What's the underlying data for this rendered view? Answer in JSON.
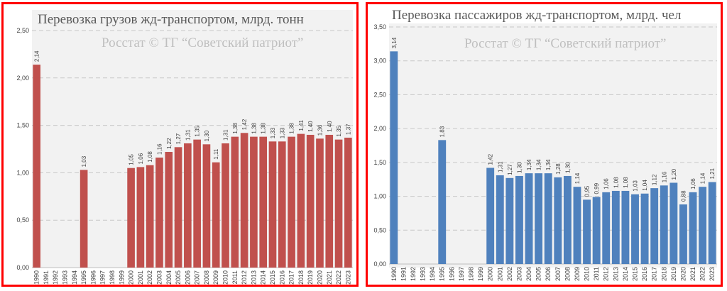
{
  "colors": {
    "frame": "#ff0000",
    "left_bars": "#c0504d",
    "right_bars": "#4f81bd",
    "plot_bg": "#f2f2f2"
  },
  "chart_data": [
    {
      "type": "bar",
      "title": "Перевозка грузов жд-транспортом, млрд. тонн",
      "watermark": "Росстат © ТГ “Советский патриот”",
      "categories": [
        "1990",
        "1991",
        "1992",
        "1993",
        "1994",
        "1995",
        "1996",
        "1997",
        "1998",
        "1999",
        "2000",
        "2001",
        "2002",
        "2003",
        "2004",
        "2005",
        "2006",
        "2007",
        "2008",
        "2009",
        "2010",
        "2011",
        "2012",
        "2013",
        "2014",
        "2015",
        "2016",
        "2017",
        "2018",
        "2019",
        "2020",
        "2021",
        "2022",
        "2023"
      ],
      "values": [
        2.14,
        null,
        null,
        null,
        null,
        1.03,
        null,
        null,
        null,
        null,
        1.05,
        1.06,
        1.08,
        1.16,
        1.22,
        1.27,
        1.31,
        1.35,
        1.3,
        1.11,
        1.31,
        1.38,
        1.42,
        1.38,
        1.38,
        1.33,
        1.33,
        1.38,
        1.41,
        1.4,
        1.36,
        1.4,
        1.35,
        1.37
      ],
      "data_labels": [
        "2,14",
        "",
        "",
        "",
        "",
        "1,03",
        "",
        "",
        "",
        "",
        "1,05",
        "1,06",
        "1,08",
        "1,16",
        "1,22",
        "1,27",
        "1,31",
        "1,35",
        "1,30",
        "1,11",
        "1,31",
        "1,38",
        "1,42",
        "1,38",
        "1,38",
        "1,33",
        "1,33",
        "1,38",
        "1,41",
        "1,40",
        "1,36",
        "1,40",
        "1,35",
        "1,37"
      ],
      "yticks": [
        "0,00",
        "0,50",
        "1,00",
        "1,50",
        "2,00",
        "2,50"
      ],
      "ylim": [
        0,
        2.5
      ],
      "grid": true,
      "bar_color": "#c0504d"
    },
    {
      "type": "bar",
      "title": "Перевозка пассажиров жд-транспортом, млрд. чел",
      "watermark": "Росстат © ТГ “Советский патриот”",
      "categories": [
        "1990",
        "1991",
        "1992",
        "1993",
        "1994",
        "1995",
        "1996",
        "1997",
        "1998",
        "1999",
        "2000",
        "2001",
        "2002",
        "2003",
        "2004",
        "2005",
        "2006",
        "2007",
        "2008",
        "2009",
        "2010",
        "2011",
        "2012",
        "2013",
        "2014",
        "2015",
        "2016",
        "2017",
        "2018",
        "2019",
        "2020",
        "2021",
        "2022",
        "2023"
      ],
      "values": [
        3.14,
        null,
        null,
        null,
        null,
        1.83,
        null,
        null,
        null,
        null,
        1.42,
        1.31,
        1.27,
        1.3,
        1.34,
        1.34,
        1.34,
        1.28,
        1.3,
        1.14,
        0.95,
        0.99,
        1.06,
        1.08,
        1.08,
        1.03,
        1.04,
        1.12,
        1.16,
        1.2,
        0.88,
        1.06,
        1.14,
        1.21
      ],
      "data_labels": [
        "3,14",
        "",
        "",
        "",
        "",
        "1,83",
        "",
        "",
        "",
        "",
        "1,42",
        "1,31",
        "1,27",
        "1,30",
        "1,34",
        "1,34",
        "1,34",
        "1,28",
        "1,30",
        "1,14",
        "0,95",
        "0,99",
        "1,06",
        "1,08",
        "1,08",
        "1,03",
        "1,04",
        "1,12",
        "1,16",
        "1,20",
        "0,88",
        "1,06",
        "1,14",
        "1,21"
      ],
      "yticks": [
        "0,00",
        "0,50",
        "1,00",
        "1,50",
        "2,00",
        "2,50",
        "3,00",
        "3,50"
      ],
      "ylim": [
        0,
        3.5
      ],
      "grid": true,
      "bar_color": "#4f81bd"
    }
  ]
}
